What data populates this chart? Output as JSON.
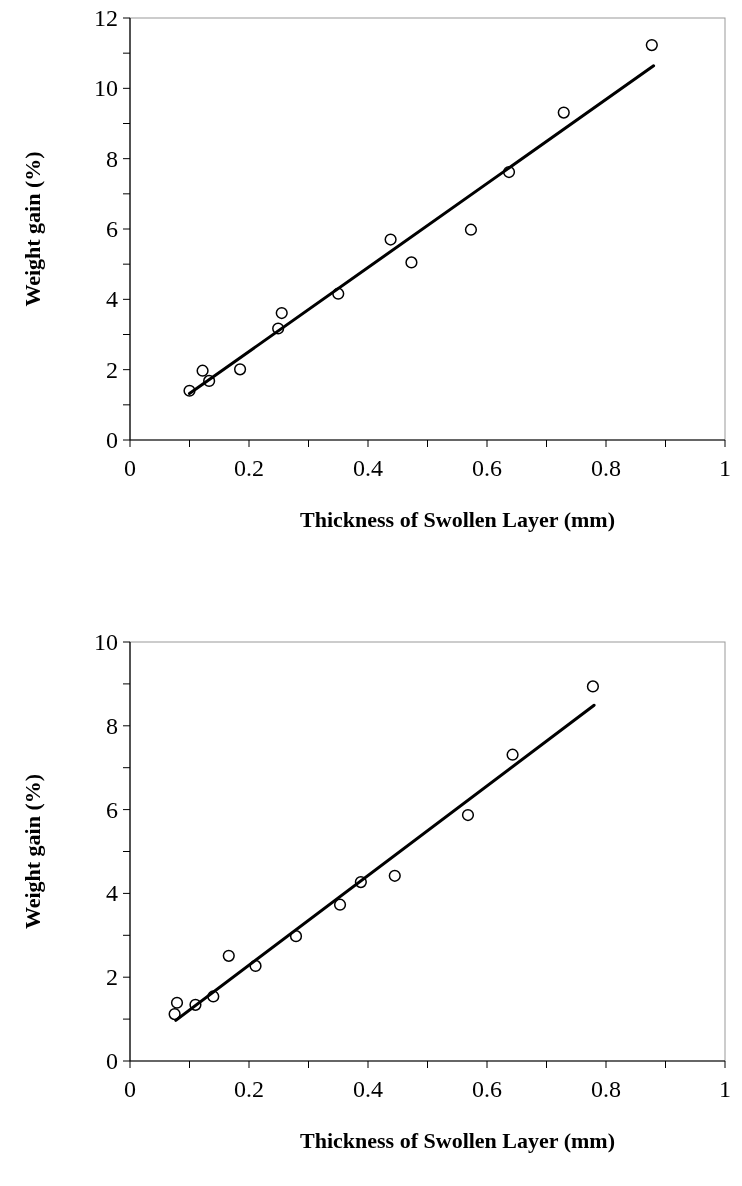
{
  "chart_data": [
    {
      "type": "scatter",
      "xlabel": "Thickness of Swollen Layer (mm)",
      "ylabel": "Weight gain (%)",
      "xlim": [
        0,
        1
      ],
      "ylim": [
        0,
        12
      ],
      "xticks": [
        0,
        {
          "value": 0.1,
          "label": null
        },
        0.2,
        {
          "value": 0.3,
          "label": null
        },
        0.4,
        {
          "value": 0.5,
          "label": null
        },
        0.6,
        {
          "value": 0.7,
          "label": null
        },
        0.8,
        {
          "value": 0.9,
          "label": null
        },
        1
      ],
      "yticks": [
        0,
        {
          "value": 1,
          "label": null
        },
        2,
        {
          "value": 3,
          "label": null
        },
        4,
        {
          "value": 5,
          "label": null
        },
        6,
        {
          "value": 7,
          "label": null
        },
        8,
        {
          "value": 9,
          "label": null
        },
        10,
        {
          "value": 11,
          "label": null
        },
        12
      ],
      "series": [
        {
          "marker": "circle",
          "color": "#000000",
          "x": [
            0.1,
            0.122,
            0.133,
            0.185,
            0.249,
            0.255,
            0.35,
            0.438,
            0.473,
            0.573,
            0.637,
            0.729,
            0.877
          ],
          "values": [
            1.4,
            1.97,
            1.68,
            2.01,
            3.17,
            3.61,
            4.16,
            5.7,
            5.05,
            5.98,
            7.62,
            9.31,
            11.23
          ]
        },
        {
          "type": "line",
          "marker": "none",
          "color": "#000000",
          "x": [
            0.1,
            0.88
          ],
          "values": [
            1.32,
            10.64
          ]
        }
      ]
    },
    {
      "type": "scatter",
      "xlabel": "Thickness of Swollen Layer (mm)",
      "ylabel": "Weight gain (%)",
      "xlim": [
        0,
        1
      ],
      "ylim": [
        0,
        10
      ],
      "xticks": [
        0,
        {
          "value": 0.1,
          "label": null
        },
        0.2,
        {
          "value": 0.3,
          "label": null
        },
        0.4,
        {
          "value": 0.5,
          "label": null
        },
        0.6,
        {
          "value": 0.7,
          "label": null
        },
        0.8,
        {
          "value": 0.9,
          "label": null
        },
        1
      ],
      "yticks": [
        0,
        {
          "value": 1,
          "label": null
        },
        2,
        {
          "value": 3,
          "label": null
        },
        4,
        {
          "value": 5,
          "label": null
        },
        6,
        {
          "value": 7,
          "label": null
        },
        8,
        {
          "value": 9,
          "label": null
        },
        10
      ],
      "series": [
        {
          "marker": "circle",
          "color": "#000000",
          "x": [
            0.075,
            0.079,
            0.11,
            0.14,
            0.166,
            0.211,
            0.279,
            0.353,
            0.388,
            0.445,
            0.568,
            0.643,
            0.778
          ],
          "values": [
            1.12,
            1.39,
            1.34,
            1.54,
            2.51,
            2.27,
            2.98,
            3.73,
            4.27,
            4.42,
            5.87,
            7.31,
            8.94
          ]
        },
        {
          "type": "line",
          "marker": "none",
          "color": "#000000",
          "x": [
            0.077,
            0.78
          ],
          "values": [
            0.97,
            8.49
          ]
        }
      ]
    }
  ]
}
